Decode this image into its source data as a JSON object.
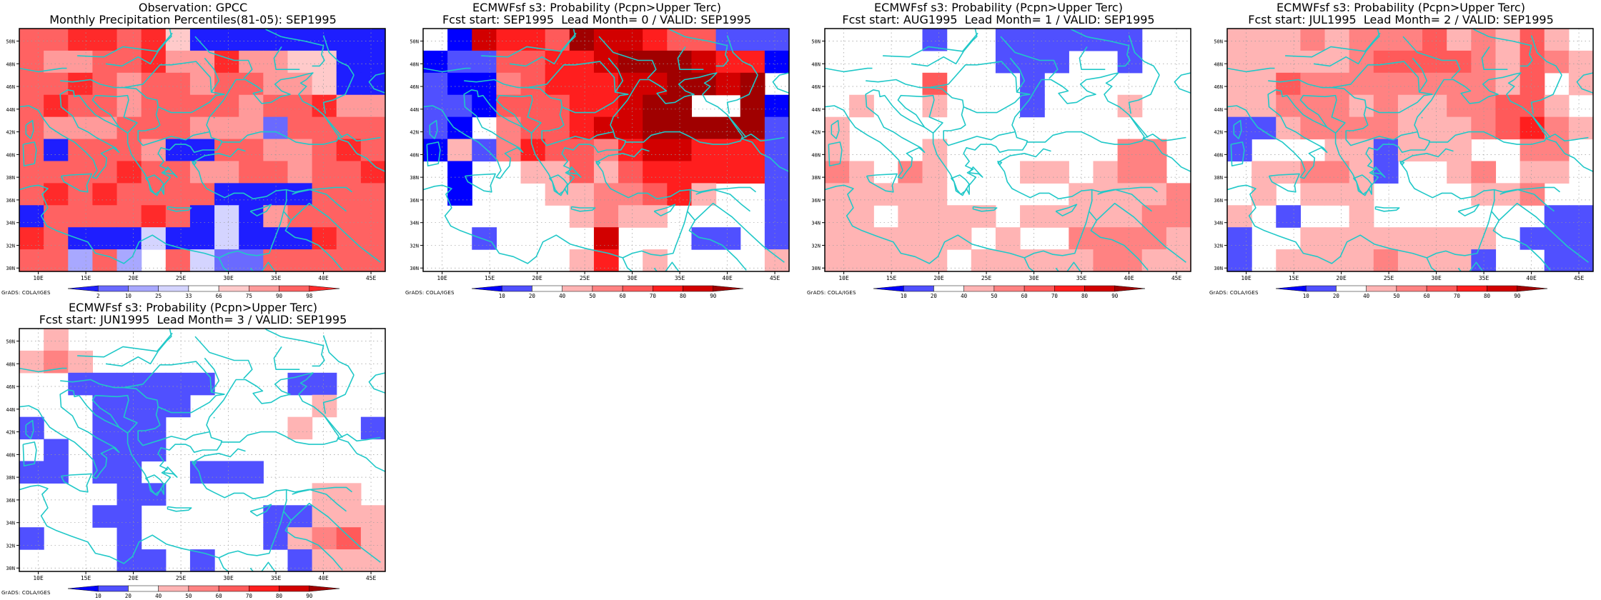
{
  "footer_label": "GrADS: COLA/IGES",
  "colors": {
    "coast": "#20c8c8",
    "frame": "#000000",
    "grid": "#9a9a9a"
  },
  "axes": {
    "lon_ticks": [
      "10E",
      "15E",
      "20E",
      "25E",
      "30E",
      "35E",
      "40E",
      "45E"
    ],
    "lat_ticks": [
      "30N",
      "32N",
      "34N",
      "36N",
      "38N",
      "40N",
      "42N",
      "44N",
      "46N",
      "48N",
      "50N"
    ],
    "lon_range": [
      8,
      46.5
    ],
    "lat_range": [
      29.7,
      51.1
    ]
  },
  "colorbars": {
    "observation": {
      "labels": [
        "2",
        "10",
        "25",
        "33",
        "66",
        "75",
        "90",
        "98"
      ],
      "colors": [
        "#1e1eff",
        "#6a6aff",
        "#a8a8ff",
        "#d4d4ff",
        "#ffffff",
        "#ffcaca",
        "#ff9a9a",
        "#ff6262",
        "#ff2a2a"
      ]
    },
    "forecast": {
      "labels": [
        "10",
        "20",
        "40",
        "50",
        "60",
        "70",
        "80",
        "90"
      ],
      "colors": [
        "#0000ff",
        "#5050ff",
        "#ffffff",
        "#ffb4b4",
        "#ff8282",
        "#ff5a5a",
        "#ff1e1e",
        "#d20000",
        "#a00000"
      ]
    }
  },
  "panels": [
    {
      "title1": "Observation: GPCC",
      "title2": "Monthly Precipitation Percentiles(81-05): SEP1995",
      "legend": "observation",
      "grid": [
        "778878500000000",
        "766778668665500",
        "778767767766500",
        "787767777677866",
        "766677766617777",
        "707776007766787",
        "777787766776778",
        "787877770000777",
        "077778703067777",
        "870003003000877",
        "772724731177777"
      ]
    },
    {
      "title1": "ECMWFsf s3: Probability (Pcpn>Upper Terc)",
      "title2": "Fcst start: SEP1995  Lead Month= 0 / VALID: SEP1995",
      "legend": "forecast",
      "grid": [
        "207665877655111",
        "011556678887660",
        "100456667788782",
        "110555667889980",
        "102455677888881",
        "031465546776661",
        "202233535666661",
        "202223344563221",
        "222222343322221",
        "221222272221121",
        "222222362322223"
      ]
    },
    {
      "title1": "ECMWFsf s3: Probability (Pcpn>Upper Terc)",
      "title2": "Fcst start: AUG1995  Lead Month= 1 / VALID: SEP1995",
      "legend": "forecast",
      "grid": [
        "222212211111122",
        "222222211122122",
        "222252221222222",
        "232232221222322",
        "322222222222222",
        "322232222222442",
        "432432223323442",
        "333332222233334",
        "332333323333344",
        "333333232244443",
        "333332333334433"
      ]
    },
    {
      "title1": "ECMWFsf s3: Probability (Pcpn>Upper Terc)",
      "title2": "Fcst start: JUL1995  Lead Month= 2 / VALID: SEP1995",
      "legend": "forecast",
      "grid": [
        "333434445343532",
        "333334555543543",
        "335444444443523",
        "334443433445532",
        "113444433345643",
        "122233133322442",
        "233443122342332",
        "232333222233422",
        "321223222222211",
        "122333333332111",
        "123333433312211"
      ]
    },
    {
      "title1": "ECMWFsf s3: Probability (Pcpn>Upper Terc)",
      "title2": "Fcst start: JUN1995  Lead Month= 3 / VALID: SEP1995",
      "legend": "forecast",
      "grid": [
        "232222222222222",
        "343222222222222",
        "221111112221122",
        "222111122222322",
        "122111222223221",
        "212111222222222",
        "112112211122222",
        "222211222222332",
        "222112222211333",
        "122212222213453",
        "222211212221333"
      ]
    }
  ]
}
